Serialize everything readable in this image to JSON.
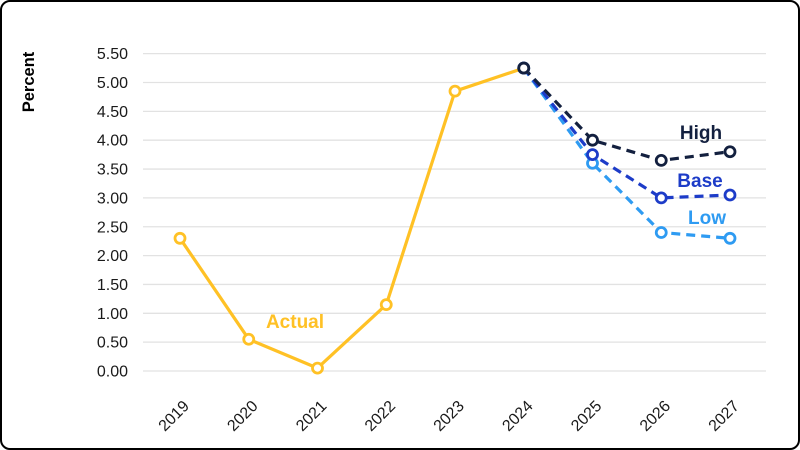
{
  "chart_data": {
    "type": "line",
    "title": "",
    "xlabel": "",
    "ylabel": "Percent",
    "categories": [
      "2019",
      "2020",
      "2021",
      "2022",
      "2023",
      "2024",
      "2025",
      "2026",
      "2027"
    ],
    "ylim": [
      0,
      5.5
    ],
    "ytick_step": 0.5,
    "ytick_decimals": 2,
    "grid": true,
    "gridline_color": "#e2e2e2",
    "axis_text_color": "#1a1a1a",
    "legend_position": "inline-labels",
    "series": [
      {
        "name": "Actual",
        "color": "#ffc125",
        "style": "solid",
        "values": [
          2.3,
          0.55,
          0.05,
          1.15,
          4.85,
          5.25,
          null,
          null,
          null
        ]
      },
      {
        "name": "Low",
        "color": "#2e9bf2",
        "style": "dashed",
        "values": [
          null,
          null,
          null,
          null,
          null,
          5.25,
          3.6,
          2.4,
          2.3
        ]
      },
      {
        "name": "Base",
        "color": "#1d3cc8",
        "style": "dashed",
        "values": [
          null,
          null,
          null,
          null,
          null,
          5.25,
          3.75,
          3.0,
          3.05
        ]
      },
      {
        "name": "High",
        "color": "#13203f",
        "style": "dashed",
        "values": [
          null,
          null,
          null,
          null,
          null,
          5.25,
          4.0,
          3.65,
          3.8
        ]
      }
    ]
  }
}
